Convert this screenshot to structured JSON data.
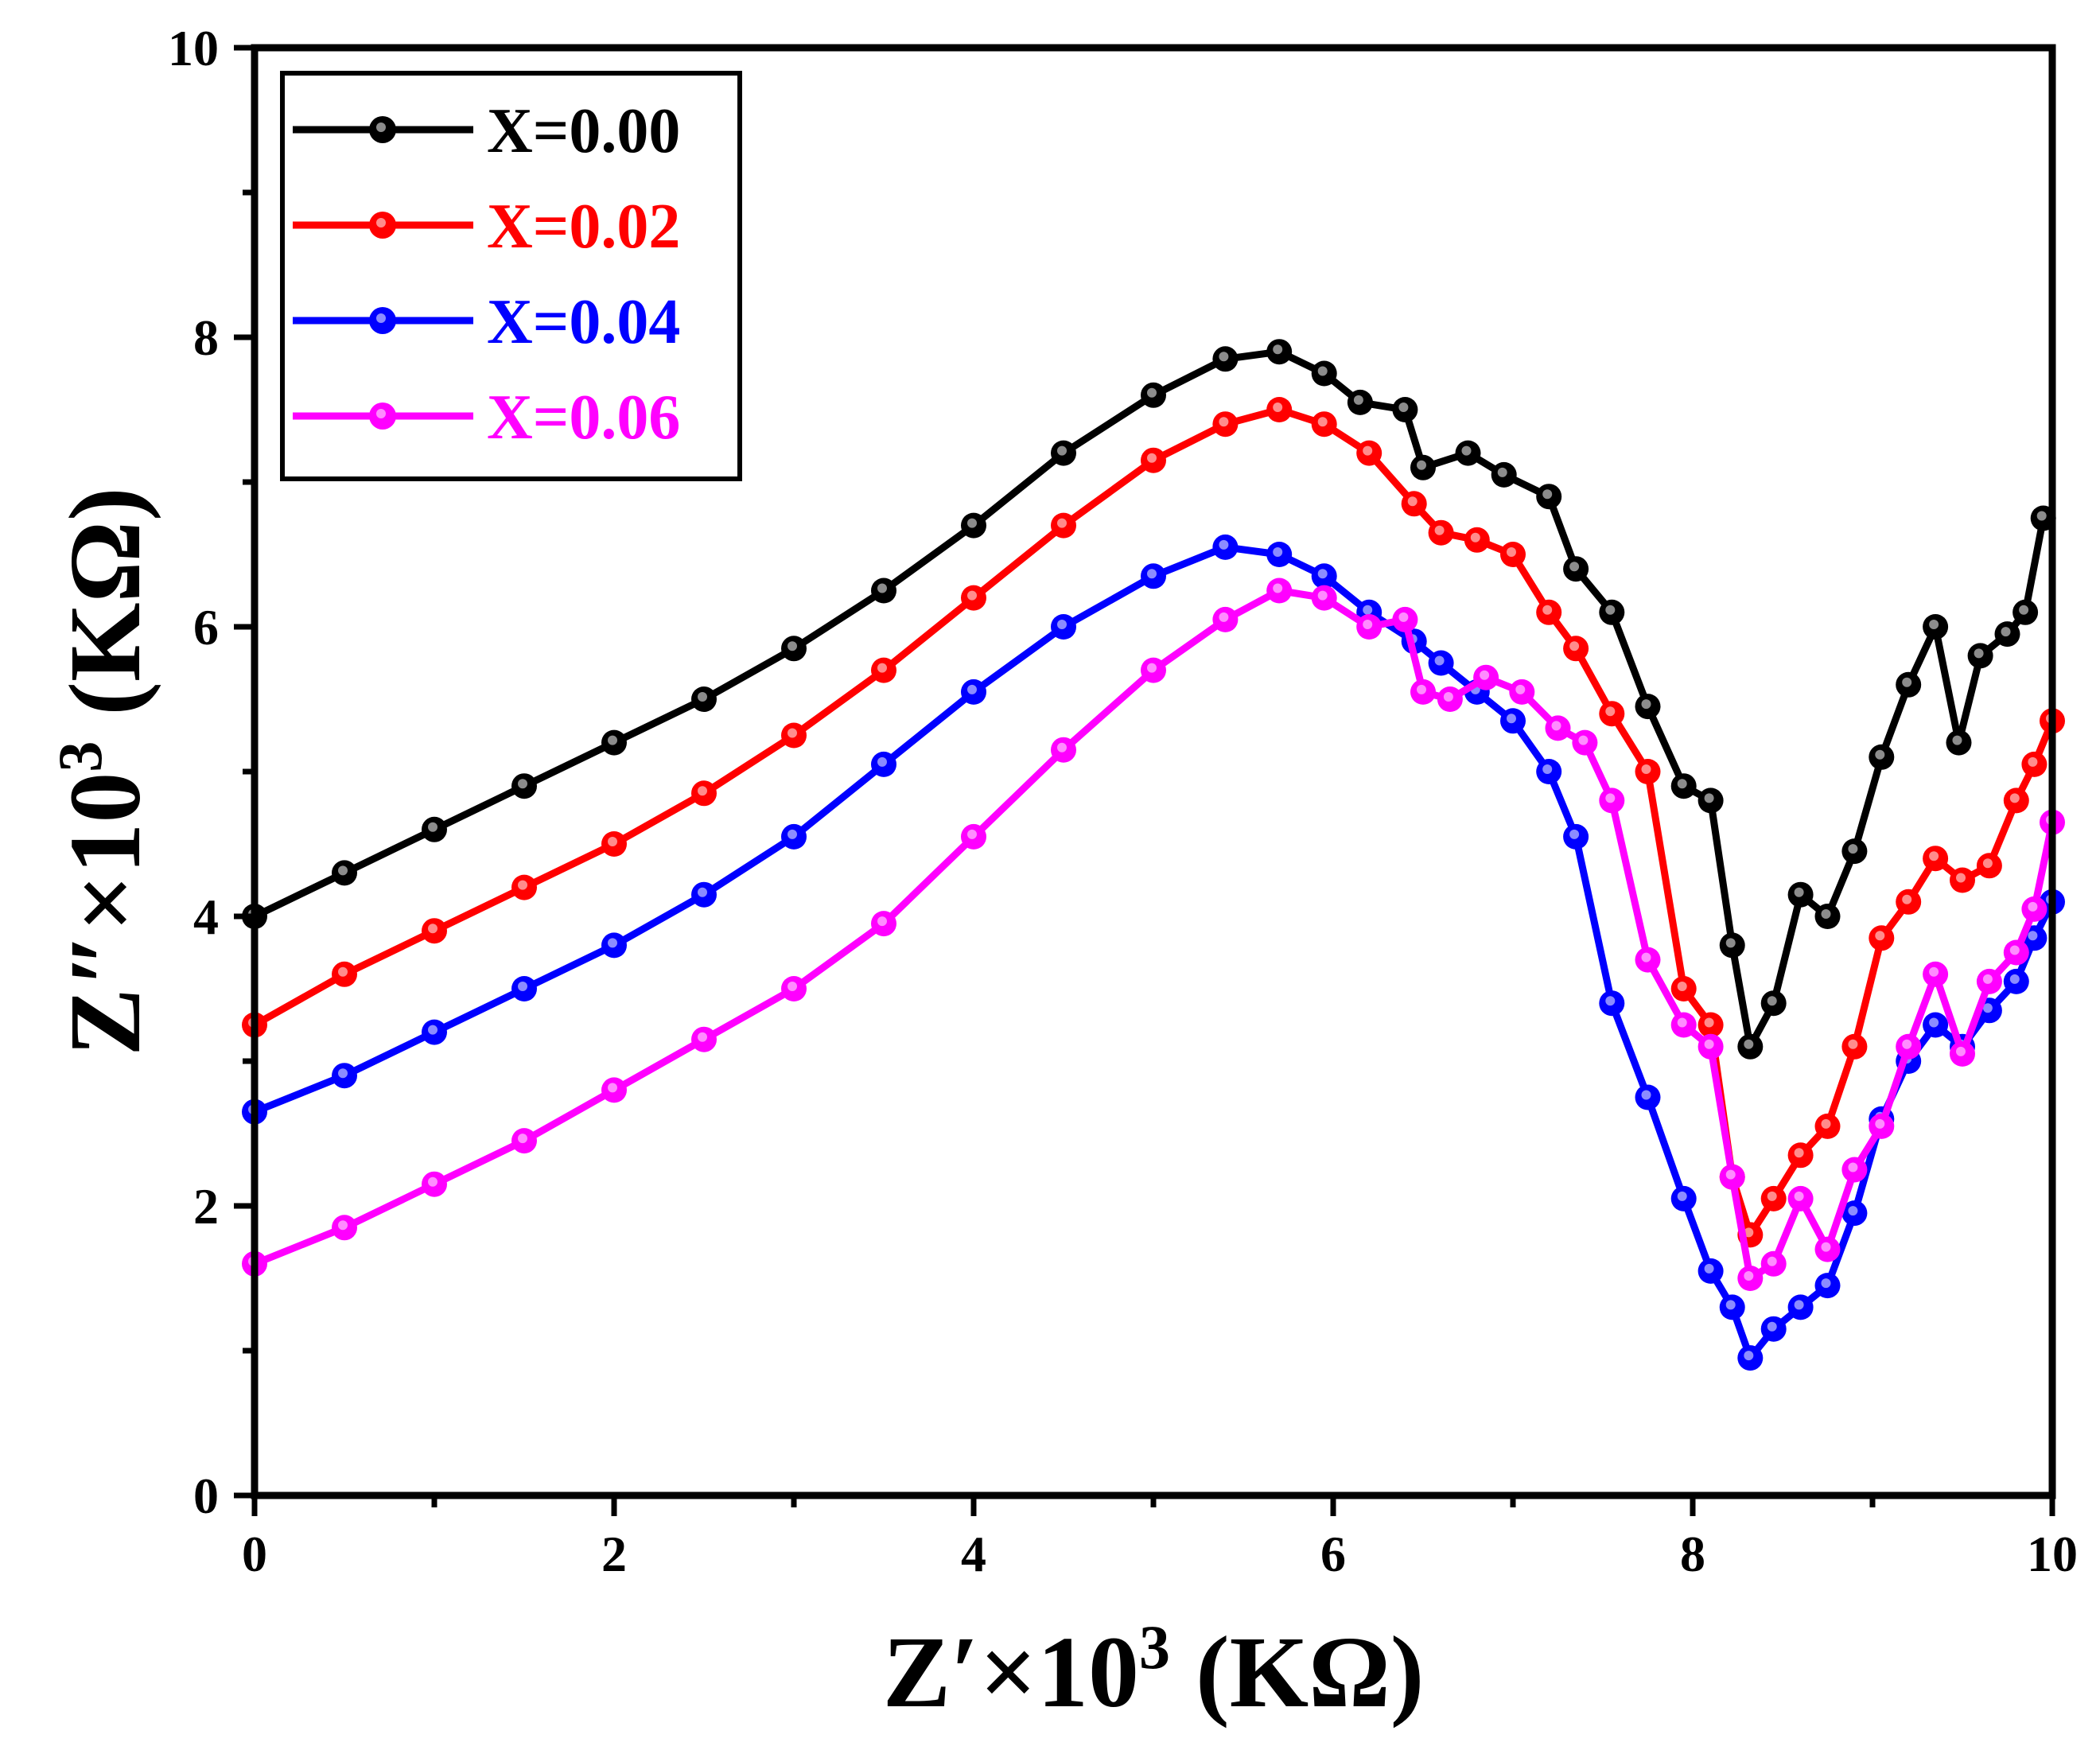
{
  "chart_data": {
    "type": "line",
    "xlabel": {
      "base": "Z′×10",
      "sup": "3",
      "unit": " (KΩ)"
    },
    "ylabel": {
      "base": "Z″×10",
      "sup": "3",
      "unit": " (KΩ)"
    },
    "xlim": [
      0,
      10
    ],
    "ylim": [
      0,
      10
    ],
    "xticks": [
      0,
      2,
      4,
      6,
      8,
      10
    ],
    "yticks": [
      0,
      2,
      4,
      6,
      8,
      10
    ],
    "xtick_labels": [
      "0",
      "2",
      "4",
      "6",
      "8",
      "10"
    ],
    "ytick_labels": [
      "0",
      "2",
      "4",
      "6",
      "8",
      "10"
    ],
    "grid": false,
    "legend_position": "top-left",
    "series": [
      {
        "name": "X=0.00",
        "color": "#000000",
        "x": [
          0,
          0.5,
          1,
          1.5,
          2,
          2.5,
          3,
          3.5,
          4,
          4.5,
          5,
          5.4,
          5.7,
          5.95,
          6.15,
          6.4,
          6.5,
          6.75,
          6.95,
          7.2,
          7.35,
          7.55,
          7.75,
          7.95,
          8.1,
          8.22,
          8.32,
          8.45,
          8.6,
          8.75,
          8.9,
          9.05,
          9.2,
          9.35,
          9.48,
          9.6,
          9.75,
          9.85,
          9.95
        ],
        "y": [
          4.0,
          4.3,
          4.6,
          4.9,
          5.2,
          5.5,
          5.85,
          6.25,
          6.7,
          7.2,
          7.6,
          7.85,
          7.9,
          7.75,
          7.55,
          7.5,
          7.1,
          7.2,
          7.05,
          6.9,
          6.4,
          6.1,
          5.45,
          4.9,
          4.8,
          3.8,
          3.1,
          3.4,
          4.15,
          4.0,
          4.45,
          5.1,
          5.6,
          6.0,
          5.2,
          5.8,
          5.95,
          6.1,
          6.75
        ]
      },
      {
        "name": "X=0.02",
        "color": "#ff0000",
        "x": [
          0,
          0.5,
          1,
          1.5,
          2,
          2.5,
          3,
          3.5,
          4,
          4.5,
          5,
          5.4,
          5.7,
          5.95,
          6.2,
          6.45,
          6.6,
          6.8,
          7.0,
          7.2,
          7.35,
          7.55,
          7.75,
          7.95,
          8.1,
          8.22,
          8.32,
          8.45,
          8.6,
          8.75,
          8.9,
          9.05,
          9.2,
          9.35,
          9.5,
          9.65,
          9.8,
          9.9,
          10.0
        ],
        "y": [
          3.25,
          3.6,
          3.9,
          4.2,
          4.5,
          4.85,
          5.25,
          5.7,
          6.2,
          6.7,
          7.15,
          7.4,
          7.5,
          7.4,
          7.2,
          6.85,
          6.65,
          6.6,
          6.5,
          6.1,
          5.85,
          5.4,
          5.0,
          3.5,
          3.25,
          2.2,
          1.8,
          2.05,
          2.35,
          2.55,
          3.1,
          3.85,
          4.1,
          4.4,
          4.25,
          4.35,
          4.8,
          5.05,
          5.35
        ]
      },
      {
        "name": "X=0.04",
        "color": "#0000ff",
        "x": [
          0,
          0.5,
          1,
          1.5,
          2,
          2.5,
          3,
          3.5,
          4,
          4.5,
          5,
          5.4,
          5.7,
          5.95,
          6.2,
          6.45,
          6.6,
          6.8,
          7.0,
          7.2,
          7.35,
          7.55,
          7.75,
          7.95,
          8.1,
          8.22,
          8.32,
          8.45,
          8.6,
          8.75,
          8.9,
          9.05,
          9.2,
          9.35,
          9.5,
          9.65,
          9.8,
          9.9,
          10.0
        ],
        "y": [
          2.65,
          2.9,
          3.2,
          3.5,
          3.8,
          4.15,
          4.55,
          5.05,
          5.55,
          6.0,
          6.35,
          6.55,
          6.5,
          6.35,
          6.1,
          5.9,
          5.75,
          5.55,
          5.35,
          5.0,
          4.55,
          3.4,
          2.75,
          2.05,
          1.55,
          1.3,
          0.95,
          1.15,
          1.3,
          1.45,
          1.95,
          2.6,
          3.0,
          3.25,
          3.1,
          3.35,
          3.55,
          3.85,
          4.1
        ]
      },
      {
        "name": "X=0.06",
        "color": "#ff00ff",
        "x": [
          0,
          0.5,
          1,
          1.5,
          2,
          2.5,
          3,
          3.5,
          4,
          4.5,
          5,
          5.4,
          5.7,
          5.95,
          6.2,
          6.4,
          6.5,
          6.65,
          6.85,
          7.05,
          7.25,
          7.4,
          7.55,
          7.75,
          7.95,
          8.1,
          8.22,
          8.32,
          8.45,
          8.6,
          8.75,
          8.9,
          9.05,
          9.2,
          9.35,
          9.5,
          9.65,
          9.8,
          9.9,
          10.0
        ],
        "y": [
          1.6,
          1.85,
          2.15,
          2.45,
          2.8,
          3.15,
          3.5,
          3.95,
          4.55,
          5.15,
          5.7,
          6.05,
          6.25,
          6.2,
          6.0,
          6.05,
          5.55,
          5.5,
          5.65,
          5.55,
          5.3,
          5.2,
          4.8,
          3.7,
          3.25,
          3.1,
          2.2,
          1.5,
          1.6,
          2.05,
          1.7,
          2.25,
          2.55,
          3.1,
          3.6,
          3.05,
          3.55,
          3.75,
          4.05,
          4.65
        ]
      }
    ]
  }
}
